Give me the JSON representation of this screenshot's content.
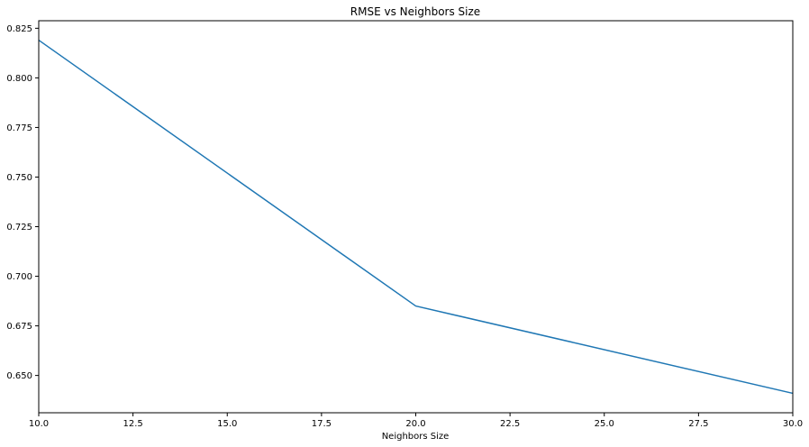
{
  "chart_data": {
    "type": "line",
    "title": "RMSE vs Neighbors Size",
    "xlabel": "Neighbors Size",
    "ylabel": "",
    "x": [
      10,
      20,
      30
    ],
    "series": [
      {
        "values": [
          0.819,
          0.685,
          0.641
        ],
        "color": "#1f77b4"
      }
    ],
    "xlim": [
      10,
      30
    ],
    "ylim": [
      0.6312,
      0.8288
    ],
    "xticks": [
      10.0,
      12.5,
      15.0,
      17.5,
      20.0,
      22.5,
      25.0,
      27.5,
      30.0
    ],
    "xtick_labels": [
      "10.0",
      "12.5",
      "15.0",
      "17.5",
      "20.0",
      "22.5",
      "25.0",
      "27.5",
      "30.0"
    ],
    "yticks": [
      0.65,
      0.675,
      0.7,
      0.725,
      0.75,
      0.775,
      0.8,
      0.825
    ],
    "ytick_labels": [
      "0.650",
      "0.675",
      "0.700",
      "0.725",
      "0.750",
      "0.775",
      "0.800",
      "0.825"
    ],
    "grid": false,
    "legend": "none"
  }
}
